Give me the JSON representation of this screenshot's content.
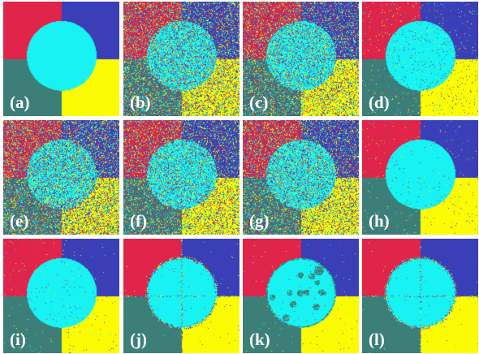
{
  "figure": {
    "colors": {
      "top_left": "#e0244a",
      "top_right": "#3a3fb7",
      "bottom_left": "#3c7f79",
      "bottom_right": "#fbfb04",
      "circle": "#18f2f2"
    },
    "panels": [
      {
        "label": "(a)",
        "noise": "none",
        "noise_level": 0
      },
      {
        "label": "(b)",
        "noise": "dense",
        "noise_level": 0.45
      },
      {
        "label": "(c)",
        "noise": "dense",
        "noise_level": 0.4
      },
      {
        "label": "(d)",
        "noise": "sparse",
        "noise_level": 0.05
      },
      {
        "label": "(e)",
        "noise": "dense",
        "noise_level": 0.5
      },
      {
        "label": "(f)",
        "noise": "dense",
        "noise_level": 0.4
      },
      {
        "label": "(g)",
        "noise": "dense",
        "noise_level": 0.42
      },
      {
        "label": "(h)",
        "noise": "sparse",
        "noise_level": 0.02
      },
      {
        "label": "(i)",
        "noise": "sparse",
        "noise_level": 0.015
      },
      {
        "label": "(j)",
        "noise": "edge",
        "noise_level": 0.004
      },
      {
        "label": "(k)",
        "noise": "blobs",
        "noise_level": 0.01
      },
      {
        "label": "(l)",
        "noise": "edge",
        "noise_level": 0.003
      }
    ]
  }
}
